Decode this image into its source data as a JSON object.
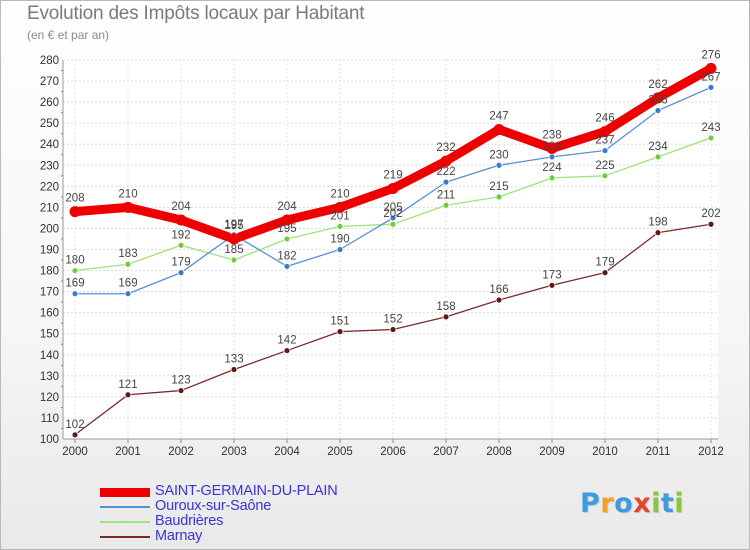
{
  "header": {
    "title": "Evolution des Impôts locaux par Habitant",
    "subtitle": "(en € et par an)"
  },
  "logo": {
    "text": "Proxiti",
    "letters": [
      {
        "ch": "P",
        "color": "#3d9be0"
      },
      {
        "ch": "r",
        "color": "#f0a029"
      },
      {
        "ch": "o",
        "color": "#3d9be0"
      },
      {
        "ch": "x",
        "color": "#e04a2a"
      },
      {
        "ch": "i",
        "color": "#8cc63f"
      },
      {
        "ch": "t",
        "color": "#3d9be0"
      },
      {
        "ch": "i",
        "color": "#8cc63f"
      }
    ]
  },
  "chart_data": {
    "type": "line",
    "title": "Evolution des Impôts locaux par Habitant",
    "ylabel": "(en € et par an)",
    "xlabel": "",
    "x": [
      "2000",
      "2001",
      "2002",
      "2003",
      "2004",
      "2005",
      "2006",
      "2007",
      "2008",
      "2009",
      "2010",
      "2011",
      "2012"
    ],
    "ylim": [
      100,
      280
    ],
    "yticks": [
      100,
      110,
      120,
      130,
      140,
      150,
      160,
      170,
      180,
      190,
      200,
      210,
      220,
      230,
      240,
      250,
      260,
      270,
      280
    ],
    "grid": true,
    "legend": "bottom-left",
    "series": [
      {
        "name": "SAINT-GERMAIN-DU-PLAIN",
        "color": "#ee0000",
        "width": 9,
        "marker": 5.5,
        "values": [
          208,
          210,
          204,
          195,
          204,
          210,
          219,
          232,
          247,
          238,
          246,
          262,
          276
        ]
      },
      {
        "name": "Ouroux-sur-Saône",
        "color": "#5a8fd6",
        "marker_fill": "#3a7ad0",
        "width": 1.3,
        "marker": 3,
        "values": [
          169,
          169,
          179,
          197,
          182,
          190,
          205,
          222,
          230,
          234,
          237,
          256,
          267
        ]
      },
      {
        "name": "Baudrières",
        "color": "#9ee37a",
        "marker_fill": "#6fcc3e",
        "width": 1.3,
        "marker": 3,
        "values": [
          180,
          183,
          192,
          185,
          195,
          201,
          202,
          211,
          215,
          224,
          225,
          234,
          243
        ]
      },
      {
        "name": "Marnay",
        "color": "#7a2a2a",
        "marker_fill": "#5e1818",
        "width": 1.3,
        "marker": 3,
        "values": [
          102,
          121,
          123,
          133,
          142,
          151,
          152,
          158,
          166,
          173,
          179,
          198,
          202
        ]
      }
    ]
  }
}
